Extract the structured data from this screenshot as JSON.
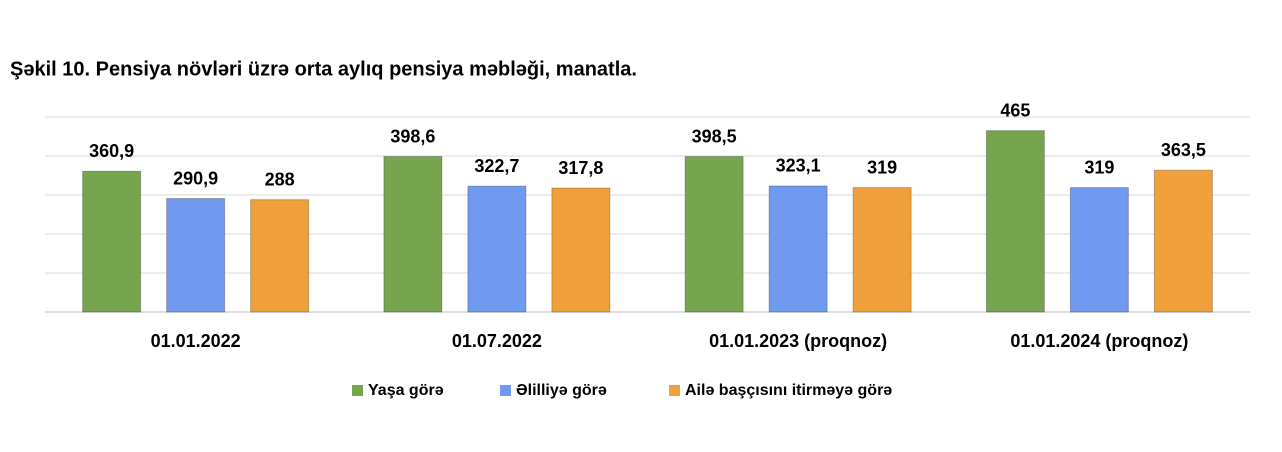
{
  "chart_data": {
    "type": "bar",
    "title": "Şəkil 10. Pensiya növləri üzrə orta aylıq pensiya məbləği, manatla.",
    "categories": [
      "01.01.2022",
      "01.07.2022",
      "01.01.2023 (proqnoz)",
      "01.01.2024 (proqnoz)"
    ],
    "series": [
      {
        "name": "Yaşa görə",
        "color": "#77a54f",
        "values": [
          360.9,
          398.6,
          398.5,
          465
        ],
        "value_labels": [
          "360,9",
          "398,6",
          "398,5",
          "465"
        ]
      },
      {
        "name": "Əlilliyə görə",
        "color": "#6f9af0",
        "values": [
          290.9,
          322.7,
          323.1,
          319
        ],
        "value_labels": [
          "290,9",
          "322,7",
          "323,1",
          "319"
        ]
      },
      {
        "name": "Ailə başçısını itirməyə görə",
        "color": "#f0a03a",
        "values": [
          288,
          317.8,
          319,
          363.5
        ],
        "value_labels": [
          "288",
          "317,8",
          "319",
          "363,5"
        ]
      }
    ],
    "ylim": [
      0,
      500
    ],
    "yticks": [
      0,
      100,
      200,
      300,
      400,
      500
    ],
    "grid": true
  }
}
